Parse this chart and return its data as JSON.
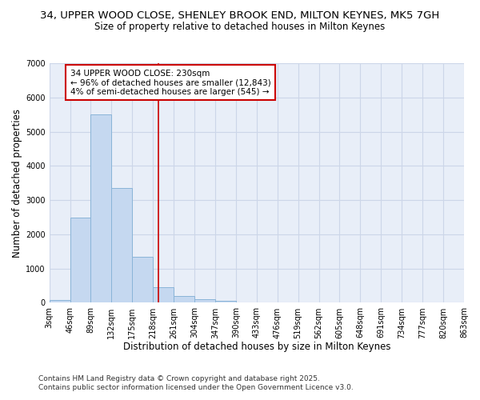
{
  "title_line1": "34, UPPER WOOD CLOSE, SHENLEY BROOK END, MILTON KEYNES, MK5 7GH",
  "title_line2": "Size of property relative to detached houses in Milton Keynes",
  "xlabel": "Distribution of detached houses by size in Milton Keynes",
  "ylabel": "Number of detached properties",
  "footnote1": "Contains HM Land Registry data © Crown copyright and database right 2025.",
  "footnote2": "Contains public sector information licensed under the Open Government Licence v3.0.",
  "annotation_line1": "34 UPPER WOOD CLOSE: 230sqm",
  "annotation_line2": "← 96% of detached houses are smaller (12,843)",
  "annotation_line3": "4% of semi-detached houses are larger (545) →",
  "property_size": 230,
  "bins": [
    3,
    46,
    89,
    132,
    175,
    218,
    261,
    304,
    347,
    390,
    433,
    476,
    519,
    562,
    605,
    648,
    691,
    734,
    777,
    820,
    863
  ],
  "counts": [
    80,
    2500,
    5500,
    3350,
    1350,
    450,
    200,
    100,
    50,
    0,
    0,
    0,
    0,
    0,
    0,
    0,
    0,
    0,
    0,
    0
  ],
  "bar_color": "#c5d8f0",
  "bar_edge_color": "#8ab4d8",
  "vline_color": "#cc0000",
  "annotation_box_edge": "#cc0000",
  "grid_color": "#ccd6e8",
  "background_color": "#e8eef8",
  "ylim": [
    0,
    7000
  ],
  "yticks": [
    0,
    1000,
    2000,
    3000,
    4000,
    5000,
    6000,
    7000
  ],
  "title_fontsize": 9.5,
  "subtitle_fontsize": 8.5,
  "axis_label_fontsize": 8.5,
  "tick_fontsize": 7,
  "annotation_fontsize": 7.5,
  "footnote_fontsize": 6.5
}
